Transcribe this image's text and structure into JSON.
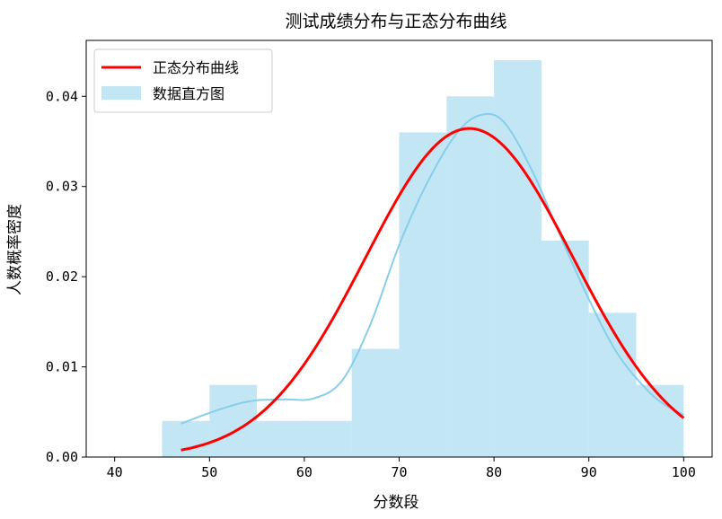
{
  "chart_data": {
    "type": "bar",
    "title": "测试成绩分布与正态分布曲线",
    "xlabel": "分数段",
    "ylabel": "人数概率密度",
    "xlim": [
      37,
      103
    ],
    "ylim": [
      0,
      0.0462
    ],
    "xticks": [
      40,
      50,
      60,
      70,
      80,
      90,
      100
    ],
    "yticks": [
      0.0,
      0.01,
      0.02,
      0.03,
      0.04
    ],
    "ytick_labels": [
      "0.00",
      "0.01",
      "0.02",
      "0.03",
      "0.04"
    ],
    "grid": false,
    "legend_position": "top-left",
    "histogram": {
      "name": "数据直方图",
      "color": "#87CEEB",
      "bins": [
        45,
        50,
        55,
        60,
        65,
        70,
        75,
        80,
        85,
        90,
        95,
        100
      ],
      "density": [
        0.004,
        0.008,
        0.004,
        0.004,
        0.012,
        0.036,
        0.04,
        0.044,
        0.024,
        0.016,
        0.008
      ]
    },
    "kde_line": {
      "color": "#87CEEB",
      "x": [
        47,
        50,
        53,
        55,
        58,
        61,
        64,
        67,
        70,
        73,
        76,
        78.5,
        81,
        84,
        87,
        90,
        93,
        96,
        98,
        100
      ],
      "y": [
        0.0037,
        0.0049,
        0.0059,
        0.0063,
        0.0064,
        0.0065,
        0.0085,
        0.0148,
        0.0235,
        0.0305,
        0.0358,
        0.0379,
        0.0372,
        0.0318,
        0.0245,
        0.0175,
        0.0115,
        0.0076,
        0.0058,
        0.0047
      ]
    },
    "normal_curve": {
      "name": "正态分布曲线",
      "color": "#FF0000",
      "mean": 77.4,
      "std": 10.95,
      "x_range": [
        47,
        100
      ]
    }
  }
}
